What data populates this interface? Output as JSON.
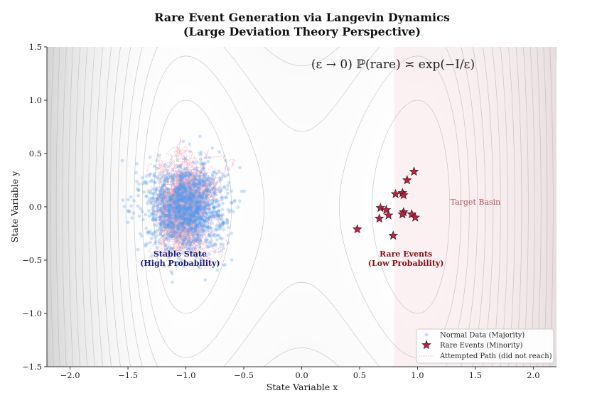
{
  "chart_data": {
    "type": "scatter",
    "title_line1": "Rare Event Generation via Langevin Dynamics",
    "title_line2": "(Large Deviation Theory Perspective)",
    "xlabel": "State Variable x",
    "ylabel": "State Variable y",
    "xlim": [
      -2.2,
      2.2
    ],
    "ylim": [
      -1.5,
      1.5
    ],
    "xticks": [
      -2.0,
      -1.5,
      -1.0,
      -0.5,
      0.0,
      0.5,
      1.0,
      1.5,
      2.0
    ],
    "xtick_labels": [
      "−2.0",
      "−1.5",
      "−1.0",
      "−0.5",
      "0.0",
      "0.5",
      "1.0",
      "1.5",
      "2.0"
    ],
    "yticks": [
      1.5,
      1.0,
      0.5,
      0.0,
      -0.5,
      -1.0,
      -1.5
    ],
    "ytick_labels": [
      "1.5",
      "1.0",
      "0.5",
      "0.0",
      "−0.5",
      "−1.0",
      "−1.5"
    ],
    "formula": "(ε → 0)   ℙ(rare) ≍ exp(−I/ε)",
    "potential": {
      "description": "double-well V(x,y) = (x^2 - 1)^2 + 0.4 y^2",
      "y_coefficient": 0.4,
      "contour_levels": [
        0.4,
        0.8,
        1.2,
        1.7,
        2.3,
        3.0,
        3.8,
        4.7,
        5.7,
        6.8,
        8.0,
        9.3,
        10.7,
        12.2,
        13.8,
        15.5
      ]
    },
    "target_region": {
      "x_min": 0.8,
      "x_max": 2.2,
      "color": "#f7e4e8"
    },
    "annotations": {
      "stable_line1": "Stable State",
      "stable_line2": "(High Probability)",
      "stable_pos": [
        -1.05,
        -0.5
      ],
      "rare_line1": "Rare Events",
      "rare_line2": "(Low Probability)",
      "rare_pos": [
        0.9,
        -0.5
      ],
      "target": "Target Basin",
      "target_pos": [
        1.5,
        0.02
      ]
    },
    "normal_data": {
      "name": "Normal Data (Majority)",
      "color": "#4f9bef",
      "count": 1500,
      "center": [
        -1.0,
        0.0
      ],
      "std": [
        0.17,
        0.2
      ]
    },
    "attempted_paths": {
      "name": "Attempted Path (did not reach)",
      "color": "#f2a7b5",
      "count": 10,
      "center": [
        -1.0,
        0.0
      ]
    },
    "rare_events": {
      "name": "Rare Events (Minority)",
      "color": "#d6163f",
      "x": [
        0.97,
        0.91,
        0.81,
        0.87,
        0.88,
        0.68,
        0.73,
        0.75,
        0.67,
        0.88,
        0.87,
        0.95,
        0.98,
        0.48,
        0.79
      ],
      "y": [
        0.33,
        0.25,
        0.12,
        0.13,
        0.11,
        -0.01,
        -0.03,
        -0.08,
        -0.11,
        -0.05,
        -0.07,
        -0.07,
        -0.1,
        -0.21,
        -0.27
      ]
    },
    "legend": {
      "location": "lower-right",
      "entries": [
        "Normal Data (Majority)",
        "Rare Events (Minority)",
        "Attempted Path (did not reach)"
      ]
    }
  }
}
